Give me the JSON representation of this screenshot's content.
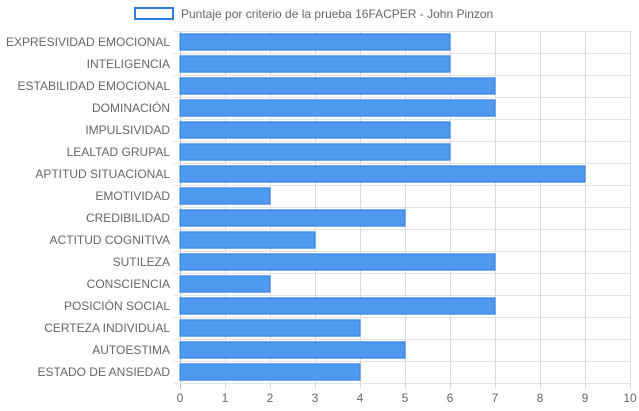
{
  "chart_data": {
    "type": "bar",
    "orientation": "horizontal",
    "title": "",
    "xlabel": "",
    "ylabel": "",
    "xlim": [
      0,
      10
    ],
    "x_ticks": [
      "0",
      "1",
      "2",
      "3",
      "4",
      "5",
      "6",
      "7",
      "8",
      "9",
      "10"
    ],
    "grid": true,
    "legend_position": "top",
    "categories": [
      "EXPRESIVIDAD EMOCIONAL",
      "INTELIGENCIA",
      "ESTABILIDAD EMOCIONAL",
      "DOMINACIÓN",
      "IMPULSIVIDAD",
      "LEALTAD GRUPAL",
      "APTITUD SITUACIONAL",
      "EMOTIVIDAD",
      "CREDIBILIDAD",
      "ACTITUD COGNITIVA",
      "SUTILEZA",
      "CONSCIENCIA",
      "POSICIÓN SOCIAL",
      "CERTEZA INDIVIDUAL",
      "AUTOESTIMA",
      "ESTADO DE ANSIEDAD"
    ],
    "series": [
      {
        "name": "Puntaje por criterio de la prueba 16FACPER - John Pinzon",
        "values": [
          6,
          6,
          7,
          7,
          6,
          6,
          9,
          2,
          5,
          3,
          7,
          2,
          7,
          4,
          5,
          4
        ],
        "color": "#4f99ef",
        "border_color": "#2f7fe0"
      }
    ]
  }
}
